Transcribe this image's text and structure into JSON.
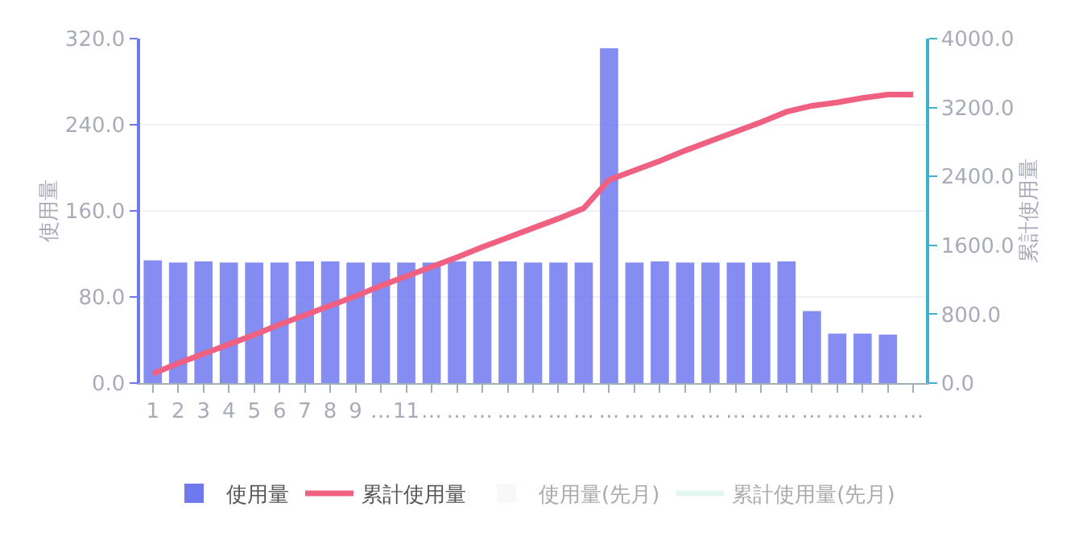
{
  "chart_data": {
    "type": "bar",
    "categories": [
      "1",
      "2",
      "3",
      "4",
      "5",
      "6",
      "7",
      "8",
      "9",
      "…",
      "11",
      "…",
      "…",
      "…",
      "…",
      "…",
      "…",
      "…",
      "…",
      "…",
      "…",
      "…",
      "…",
      "…",
      "…",
      "…",
      "…",
      "…",
      "…",
      "…",
      "…"
    ],
    "ylabel": "使用量",
    "y2label": "累計使用量",
    "series": [
      {
        "name": "使用量",
        "color": "#7078f0",
        "values": [
          114,
          112,
          113,
          112,
          112,
          112,
          113,
          113,
          112,
          112,
          112,
          112,
          113,
          113,
          113,
          112,
          112,
          112,
          311,
          112,
          113,
          112,
          112,
          112,
          112,
          113,
          67,
          46,
          46,
          45,
          0
        ]
      },
      {
        "name": "累計使用量",
        "type": "line",
        "axis": "y2",
        "color": "#f06080",
        "values": [
          110,
          230,
          340,
          450,
          560,
          680,
          790,
          900,
          1010,
          1130,
          1240,
          1350,
          1460,
          1580,
          1690,
          1800,
          1910,
          2030,
          2360,
          2470,
          2580,
          2700,
          2810,
          2920,
          3030,
          3150,
          3220,
          3260,
          3310,
          3350,
          3350
        ]
      },
      {
        "name": "使用量(先月)",
        "color": "#f2f3f7",
        "values": [
          null,
          null,
          null,
          null,
          null,
          null,
          null,
          null,
          null,
          null,
          null,
          null,
          null,
          null,
          null,
          null,
          null,
          null,
          null,
          null,
          null,
          null,
          null,
          null,
          null,
          null,
          null,
          null,
          null,
          null,
          null
        ]
      },
      {
        "name": "累計使用量(先月)",
        "type": "line",
        "axis": "y2",
        "color": "#c6f0e4",
        "values": [
          null,
          null,
          null,
          null,
          null,
          null,
          null,
          null,
          null,
          null,
          null,
          null,
          null,
          null,
          null,
          null,
          null,
          null,
          null,
          null,
          null,
          null,
          null,
          null,
          null,
          null,
          null,
          null,
          null,
          null,
          null
        ]
      }
    ],
    "ylim": [
      0,
      320
    ],
    "yticks": [
      {
        "value": 0,
        "label": "0.0"
      },
      {
        "value": 80,
        "label": "80.0"
      },
      {
        "value": 160,
        "label": "160.0"
      },
      {
        "value": 240,
        "label": "240.0"
      },
      {
        "value": 320,
        "label": "320.0"
      }
    ],
    "y2lim": [
      0,
      4000
    ],
    "y2ticks": [
      {
        "value": 0,
        "label": "0.0"
      },
      {
        "value": 800,
        "label": "800.0"
      },
      {
        "value": 1600,
        "label": "1600.0"
      },
      {
        "value": 2400,
        "label": "2400.0"
      },
      {
        "value": 3200,
        "label": "3200.0"
      },
      {
        "value": 4000,
        "label": "4000.0"
      }
    ],
    "grid": "y",
    "legend": "bottom"
  }
}
